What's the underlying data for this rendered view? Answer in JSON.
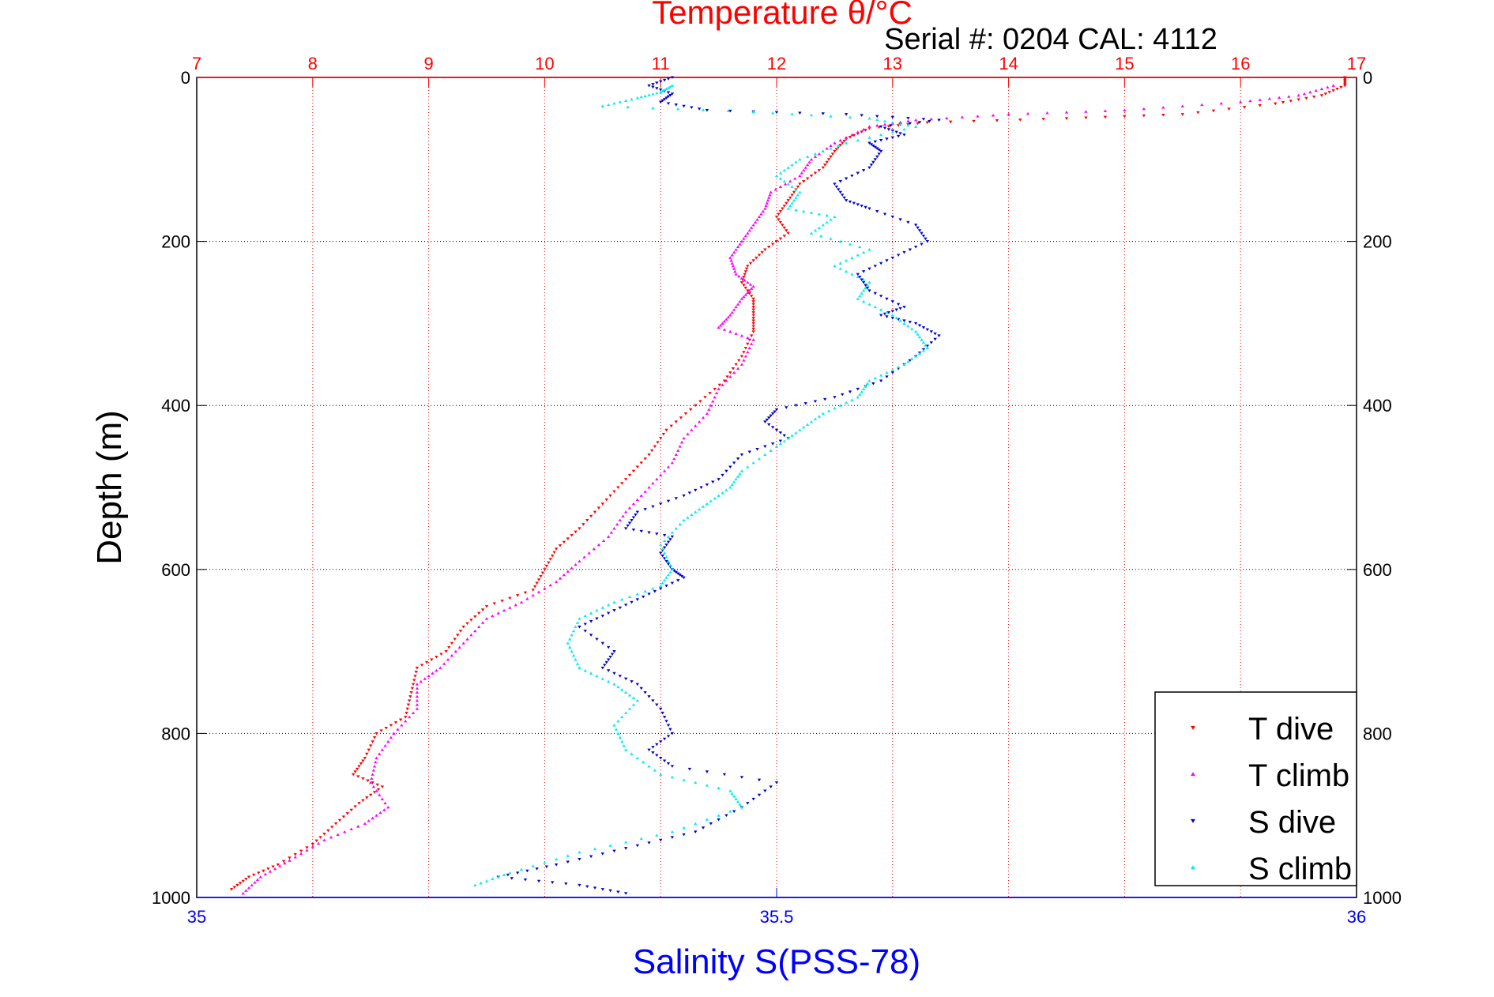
{
  "title": "Temperature θ/°C",
  "subtitle": "Serial #: 0204  CAL: 4112",
  "colors": {
    "temperature_axis": "#ff0000",
    "salinity_axis": "#0000ff",
    "grid_temperature": "#ff0000",
    "grid_depth": "#000000",
    "t_dive": "#ff0000",
    "t_climb": "#ff00ff",
    "s_dive": "#0000cc",
    "s_climb": "#00eeee"
  },
  "chart_data": {
    "type": "scatter",
    "title": "Temperature θ/°C",
    "subtitle": "Serial #: 0204  CAL: 4112",
    "ylabel": "Depth (m)",
    "xlabel_bottom": "Salinity S(PSS-78)",
    "xlabel_top": "Temperature θ/°C",
    "y_reversed": true,
    "ylim": [
      0,
      1000
    ],
    "yticks": [
      0,
      200,
      400,
      600,
      800,
      1000
    ],
    "xlim_temperature": [
      7,
      17
    ],
    "xticks_temperature": [
      7,
      8,
      9,
      10,
      11,
      12,
      13,
      14,
      15,
      16,
      17
    ],
    "xlim_salinity": [
      35,
      36
    ],
    "xticks_salinity": [
      35,
      35.5,
      36
    ],
    "grid": "on",
    "legend_position": "bottom-right",
    "legend": [
      "T dive",
      "T climb",
      "S dive",
      "S climb"
    ],
    "series": [
      {
        "name": "T dive",
        "axis": "temperature",
        "marker": "triangle-down",
        "color": "#ff0000",
        "points": [
          [
            16.9,
            0
          ],
          [
            16.9,
            10
          ],
          [
            16.7,
            22
          ],
          [
            16.3,
            32
          ],
          [
            15.5,
            45
          ],
          [
            14.5,
            50
          ],
          [
            13.3,
            55
          ],
          [
            12.8,
            62
          ],
          [
            12.6,
            75
          ],
          [
            12.5,
            90
          ],
          [
            12.4,
            110
          ],
          [
            12.2,
            130
          ],
          [
            12.1,
            150
          ],
          [
            12.0,
            170
          ],
          [
            12.1,
            190
          ],
          [
            11.9,
            210
          ],
          [
            11.75,
            230
          ],
          [
            11.7,
            250
          ],
          [
            11.8,
            270
          ],
          [
            11.8,
            290
          ],
          [
            11.8,
            310
          ],
          [
            11.7,
            340
          ],
          [
            11.55,
            370
          ],
          [
            11.3,
            400
          ],
          [
            11.05,
            430
          ],
          [
            10.9,
            460
          ],
          [
            10.7,
            490
          ],
          [
            10.5,
            520
          ],
          [
            10.3,
            550
          ],
          [
            10.1,
            575
          ],
          [
            10.0,
            600
          ],
          [
            9.9,
            625
          ],
          [
            9.5,
            645
          ],
          [
            9.3,
            670
          ],
          [
            9.15,
            700
          ],
          [
            8.9,
            720
          ],
          [
            8.85,
            750
          ],
          [
            8.8,
            780
          ],
          [
            8.55,
            800
          ],
          [
            8.45,
            830
          ],
          [
            8.35,
            850
          ],
          [
            8.6,
            865
          ],
          [
            8.4,
            885
          ],
          [
            8.2,
            910
          ],
          [
            8.0,
            935
          ],
          [
            7.7,
            960
          ],
          [
            7.45,
            975
          ],
          [
            7.3,
            990
          ]
        ]
      },
      {
        "name": "T climb",
        "axis": "temperature",
        "marker": "triangle-up",
        "color": "#ff00ff",
        "points": [
          [
            16.8,
            10
          ],
          [
            16.5,
            22
          ],
          [
            16.0,
            30
          ],
          [
            15.0,
            40
          ],
          [
            14.0,
            45
          ],
          [
            13.2,
            52
          ],
          [
            12.8,
            60
          ],
          [
            12.5,
            80
          ],
          [
            12.3,
            100
          ],
          [
            12.2,
            120
          ],
          [
            11.95,
            140
          ],
          [
            11.9,
            160
          ],
          [
            11.8,
            180
          ],
          [
            11.7,
            200
          ],
          [
            11.6,
            220
          ],
          [
            11.65,
            240
          ],
          [
            11.8,
            255
          ],
          [
            11.7,
            270
          ],
          [
            11.6,
            290
          ],
          [
            11.5,
            305
          ],
          [
            11.8,
            320
          ],
          [
            11.7,
            350
          ],
          [
            11.5,
            380
          ],
          [
            11.4,
            410
          ],
          [
            11.2,
            440
          ],
          [
            11.1,
            470
          ],
          [
            10.9,
            500
          ],
          [
            10.7,
            530
          ],
          [
            10.55,
            560
          ],
          [
            10.3,
            590
          ],
          [
            10.1,
            615
          ],
          [
            9.8,
            640
          ],
          [
            9.5,
            660
          ],
          [
            9.3,
            690
          ],
          [
            9.1,
            720
          ],
          [
            8.9,
            740
          ],
          [
            8.9,
            770
          ],
          [
            8.7,
            800
          ],
          [
            8.55,
            830
          ],
          [
            8.5,
            860
          ],
          [
            8.65,
            890
          ],
          [
            8.45,
            910
          ],
          [
            8.1,
            930
          ],
          [
            7.8,
            955
          ],
          [
            7.55,
            975
          ],
          [
            7.4,
            995
          ]
        ]
      },
      {
        "name": "S dive",
        "axis": "salinity",
        "marker": "triangle-down",
        "color": "#0000cc",
        "points": [
          [
            35.41,
            0
          ],
          [
            35.39,
            10
          ],
          [
            35.41,
            20
          ],
          [
            35.4,
            30
          ],
          [
            35.44,
            40
          ],
          [
            35.56,
            45
          ],
          [
            35.64,
            52
          ],
          [
            35.59,
            60
          ],
          [
            35.61,
            70
          ],
          [
            35.58,
            80
          ],
          [
            35.59,
            90
          ],
          [
            35.58,
            110
          ],
          [
            35.55,
            130
          ],
          [
            35.56,
            150
          ],
          [
            35.58,
            160
          ],
          [
            35.62,
            180
          ],
          [
            35.63,
            200
          ],
          [
            35.6,
            220
          ],
          [
            35.57,
            240
          ],
          [
            35.58,
            260
          ],
          [
            35.61,
            280
          ],
          [
            35.59,
            290
          ],
          [
            35.62,
            300
          ],
          [
            35.64,
            315
          ],
          [
            35.62,
            340
          ],
          [
            35.59,
            370
          ],
          [
            35.55,
            390
          ],
          [
            35.5,
            405
          ],
          [
            35.49,
            420
          ],
          [
            35.51,
            440
          ],
          [
            35.47,
            460
          ],
          [
            35.45,
            490
          ],
          [
            35.42,
            510
          ],
          [
            35.38,
            530
          ],
          [
            35.37,
            550
          ],
          [
            35.41,
            560
          ],
          [
            35.4,
            580
          ],
          [
            35.41,
            600
          ],
          [
            35.42,
            610
          ],
          [
            35.39,
            630
          ],
          [
            35.36,
            650
          ],
          [
            35.33,
            670
          ],
          [
            35.36,
            700
          ],
          [
            35.35,
            720
          ],
          [
            35.38,
            740
          ],
          [
            35.4,
            770
          ],
          [
            35.41,
            800
          ],
          [
            35.39,
            820
          ],
          [
            35.41,
            840
          ],
          [
            35.5,
            860
          ],
          [
            35.47,
            890
          ],
          [
            35.43,
            920
          ],
          [
            35.37,
            940
          ],
          [
            35.31,
            960
          ],
          [
            35.26,
            975
          ],
          [
            35.33,
            985
          ],
          [
            35.37,
            995
          ]
        ]
      },
      {
        "name": "S climb",
        "axis": "salinity",
        "marker": "triangle-up",
        "color": "#00eeee",
        "points": [
          [
            35.41,
            10
          ],
          [
            35.4,
            18
          ],
          [
            35.38,
            25
          ],
          [
            35.35,
            35
          ],
          [
            35.48,
            42
          ],
          [
            35.58,
            50
          ],
          [
            35.62,
            60
          ],
          [
            35.56,
            80
          ],
          [
            35.52,
            100
          ],
          [
            35.5,
            120
          ],
          [
            35.52,
            140
          ],
          [
            35.51,
            160
          ],
          [
            35.55,
            170
          ],
          [
            35.53,
            190
          ],
          [
            35.58,
            210
          ],
          [
            35.55,
            230
          ],
          [
            35.58,
            250
          ],
          [
            35.57,
            270
          ],
          [
            35.6,
            290
          ],
          [
            35.62,
            310
          ],
          [
            35.63,
            330
          ],
          [
            35.61,
            350
          ],
          [
            35.58,
            370
          ],
          [
            35.57,
            390
          ],
          [
            35.54,
            410
          ],
          [
            35.52,
            430
          ],
          [
            35.5,
            450
          ],
          [
            35.47,
            480
          ],
          [
            35.46,
            500
          ],
          [
            35.44,
            520
          ],
          [
            35.42,
            540
          ],
          [
            35.4,
            570
          ],
          [
            35.41,
            600
          ],
          [
            35.4,
            620
          ],
          [
            35.36,
            640
          ],
          [
            35.33,
            660
          ],
          [
            35.32,
            690
          ],
          [
            35.33,
            720
          ],
          [
            35.36,
            740
          ],
          [
            35.38,
            760
          ],
          [
            35.36,
            790
          ],
          [
            35.37,
            820
          ],
          [
            35.4,
            850
          ],
          [
            35.46,
            870
          ],
          [
            35.47,
            890
          ],
          [
            35.41,
            920
          ],
          [
            35.33,
            945
          ],
          [
            35.27,
            970
          ],
          [
            35.24,
            985
          ]
        ]
      }
    ]
  }
}
